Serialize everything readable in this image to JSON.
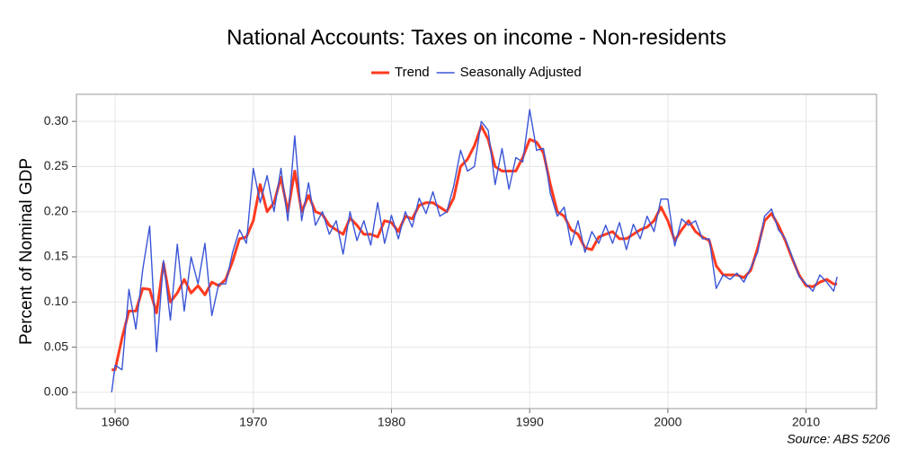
{
  "chart_data": {
    "type": "line",
    "title": "National Accounts: Taxes on income - Non-residents",
    "y_label": "Percent of Nominal GDP",
    "source": "Source: ABS 5206",
    "legend": "top",
    "grid": true,
    "xlim": [
      1957.2,
      2015.1
    ],
    "ylim": [
      -0.018,
      0.33
    ],
    "xticks": [
      1960,
      1970,
      1980,
      1990,
      2000,
      2010
    ],
    "yticks": [
      {
        "value": 0,
        "label": "0.00"
      },
      {
        "value": 0.05,
        "label": "0.05"
      },
      {
        "value": 0.1,
        "label": "0.10"
      },
      {
        "value": 0.15,
        "label": "0.15"
      },
      {
        "value": 0.2,
        "label": "0.20"
      },
      {
        "value": 0.25,
        "label": "0.25"
      },
      {
        "value": 0.3,
        "label": "0.30"
      }
    ],
    "x": [
      1959.75,
      1960,
      1960.5,
      1961,
      1961.5,
      1962,
      1962.5,
      1963,
      1963.5,
      1964,
      1964.5,
      1965,
      1965.5,
      1966,
      1966.5,
      1967,
      1967.5,
      1968,
      1968.5,
      1969,
      1969.5,
      1970,
      1970.5,
      1971,
      1971.5,
      1972,
      1972.5,
      1973,
      1973.5,
      1974,
      1974.5,
      1975,
      1975.5,
      1976,
      1976.5,
      1977,
      1977.5,
      1978,
      1978.5,
      1979,
      1979.5,
      1980,
      1980.5,
      1981,
      1981.5,
      1982,
      1982.5,
      1983,
      1983.5,
      1984,
      1984.5,
      1985,
      1985.5,
      1986,
      1986.5,
      1987,
      1987.5,
      1988,
      1988.5,
      1989,
      1989.5,
      1990,
      1990.5,
      1991,
      1991.5,
      1992,
      1992.5,
      1993,
      1993.5,
      1994,
      1994.5,
      1995,
      1995.5,
      1996,
      1996.5,
      1997,
      1997.5,
      1998,
      1998.5,
      1999,
      1999.5,
      2000,
      2000.5,
      2001,
      2001.5,
      2002,
      2002.5,
      2003,
      2003.5,
      2004,
      2004.5,
      2005,
      2005.5,
      2006,
      2006.5,
      2007,
      2007.5,
      2008,
      2008.5,
      2009,
      2009.5,
      2010,
      2010.5,
      2011,
      2011.5,
      2012,
      2012.25
    ],
    "series": [
      {
        "name": "Trend",
        "color": "#ff3a1f",
        "width": 3,
        "values": [
          0.025,
          0.025,
          0.06,
          0.09,
          0.09,
          0.115,
          0.114,
          0.088,
          0.143,
          0.1,
          0.11,
          0.125,
          0.11,
          0.118,
          0.108,
          0.122,
          0.118,
          0.125,
          0.145,
          0.17,
          0.172,
          0.19,
          0.23,
          0.2,
          0.21,
          0.238,
          0.2,
          0.245,
          0.2,
          0.218,
          0.2,
          0.197,
          0.185,
          0.18,
          0.175,
          0.193,
          0.185,
          0.175,
          0.175,
          0.172,
          0.19,
          0.188,
          0.178,
          0.195,
          0.192,
          0.207,
          0.21,
          0.21,
          0.205,
          0.2,
          0.215,
          0.25,
          0.258,
          0.273,
          0.295,
          0.28,
          0.25,
          0.245,
          0.245,
          0.245,
          0.26,
          0.28,
          0.277,
          0.265,
          0.23,
          0.2,
          0.195,
          0.18,
          0.175,
          0.16,
          0.158,
          0.172,
          0.175,
          0.178,
          0.17,
          0.17,
          0.175,
          0.18,
          0.183,
          0.19,
          0.205,
          0.19,
          0.168,
          0.18,
          0.19,
          0.178,
          0.172,
          0.168,
          0.14,
          0.13,
          0.13,
          0.13,
          0.127,
          0.135,
          0.16,
          0.19,
          0.198,
          0.185,
          0.168,
          0.148,
          0.13,
          0.118,
          0.117,
          0.122,
          0.125,
          0.12,
          0.12
        ]
      },
      {
        "name": "Seasonally Adjusted",
        "color": "#3a55d6",
        "width": 1.4,
        "values": [
          0,
          0.03,
          0.025,
          0.114,
          0.07,
          0.136,
          0.184,
          0.045,
          0.146,
          0.08,
          0.164,
          0.09,
          0.15,
          0.12,
          0.165,
          0.085,
          0.12,
          0.12,
          0.155,
          0.18,
          0.165,
          0.248,
          0.21,
          0.24,
          0.2,
          0.248,
          0.19,
          0.284,
          0.19,
          0.232,
          0.185,
          0.2,
          0.175,
          0.19,
          0.153,
          0.2,
          0.168,
          0.19,
          0.163,
          0.21,
          0.165,
          0.196,
          0.17,
          0.2,
          0.183,
          0.215,
          0.198,
          0.222,
          0.195,
          0.2,
          0.228,
          0.268,
          0.245,
          0.25,
          0.3,
          0.29,
          0.23,
          0.27,
          0.225,
          0.26,
          0.255,
          0.313,
          0.268,
          0.27,
          0.22,
          0.195,
          0.205,
          0.163,
          0.19,
          0.155,
          0.178,
          0.165,
          0.185,
          0.165,
          0.188,
          0.158,
          0.186,
          0.17,
          0.195,
          0.178,
          0.214,
          0.214,
          0.162,
          0.192,
          0.185,
          0.19,
          0.17,
          0.17,
          0.115,
          0.13,
          0.125,
          0.132,
          0.122,
          0.138,
          0.155,
          0.195,
          0.203,
          0.18,
          0.17,
          0.15,
          0.128,
          0.12,
          0.112,
          0.13,
          0.122,
          0.112,
          0.128
        ]
      }
    ]
  }
}
